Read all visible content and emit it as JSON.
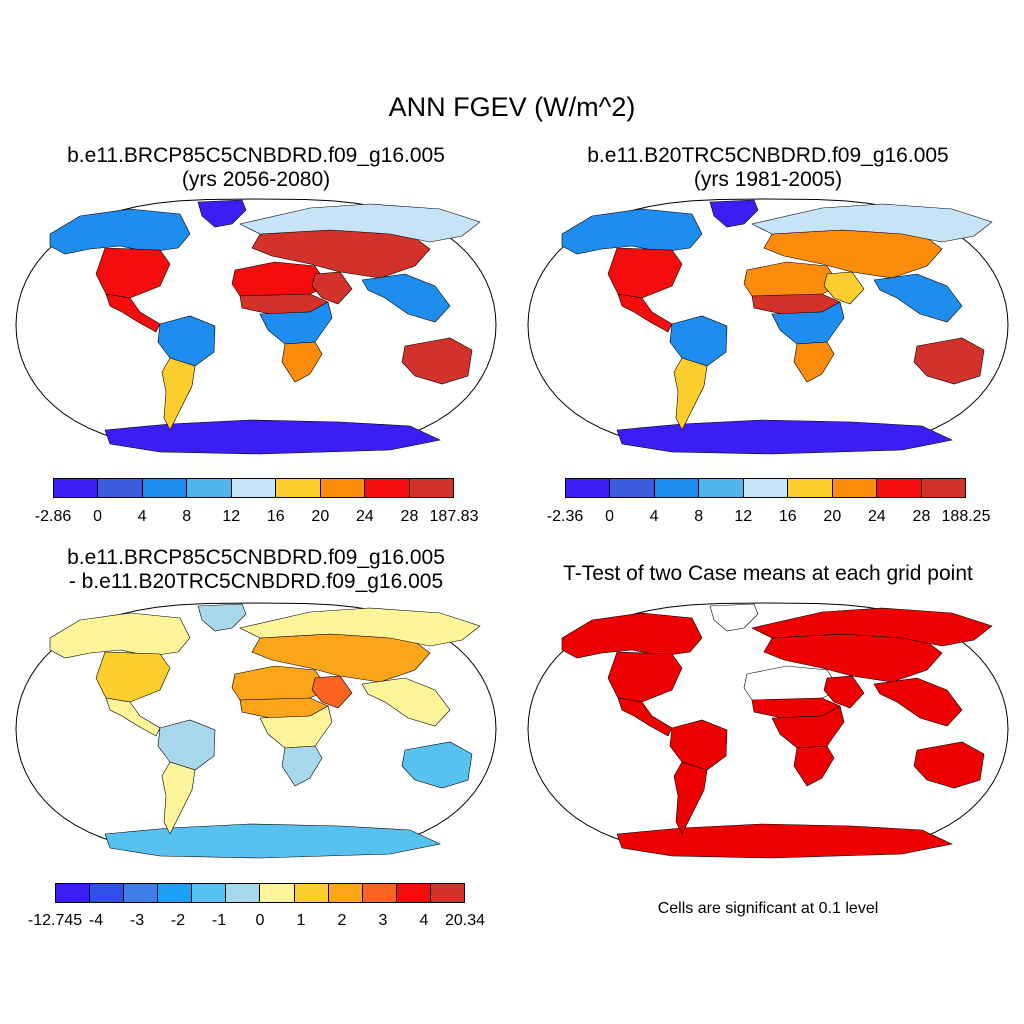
{
  "title": "ANN FGEV (W/m^2)",
  "colors": {
    "abs_scale": [
      "#3b1ef5",
      "#3e5ce0",
      "#1e8df0",
      "#4fb4ec",
      "#c6e3f7",
      "#fccf2e",
      "#fc8c0b",
      "#f50d0d",
      "#d2322a"
    ],
    "diff_scale": [
      "#3b1ef5",
      "#2f4fe8",
      "#3f7de8",
      "#1aa0f5",
      "#57c1ef",
      "#a8d8ec",
      "#fef59a",
      "#fccf2e",
      "#fca51a",
      "#fb6420",
      "#f50d0d",
      "#d2322a"
    ],
    "ttest": "#ee0000",
    "ocean": "#ffffff",
    "outline": "#000000"
  },
  "panels": [
    {
      "id": "future",
      "title_line1": "b.e11.BRCP85C5CNBDRD.f09_g16.005",
      "title_line2": "(yrs 2056-2080)",
      "colorbar_labels": [
        "-2.86",
        "0",
        "4",
        "8",
        "12",
        "16",
        "20",
        "24",
        "28",
        "187.83"
      ]
    },
    {
      "id": "historical",
      "title_line1": "b.e11.B20TRC5CNBDRD.f09_g16.005",
      "title_line2": "(yrs 1981-2005)",
      "colorbar_labels": [
        "-2.36",
        "0",
        "4",
        "8",
        "12",
        "16",
        "20",
        "24",
        "28",
        "188.25"
      ]
    },
    {
      "id": "difference",
      "title_line1": "b.e11.BRCP85C5CNBDRD.f09_g16.005",
      "title_line2": "- b.e11.B20TRC5CNBDRD.f09_g16.005",
      "colorbar_labels": [
        "-12.745",
        "-4",
        "-3",
        "-2",
        "-1",
        "0",
        "1",
        "2",
        "3",
        "4",
        "20.34"
      ]
    },
    {
      "id": "ttest",
      "title_line1": "T-Test of two Case means at each grid point",
      "note": "Cells are significant at 0.1 level"
    }
  ],
  "chart_data": [
    {
      "type": "heatmap",
      "title": "ANN FGEV (W/m^2) — b.e11.BRCP85C5CNBDRD.f09_g16.005 (yrs 2056-2080)",
      "projection": "Robinson global map",
      "colorbar": {
        "boundaries": [
          -2.86,
          0,
          4,
          8,
          12,
          16,
          20,
          24,
          28,
          187.83
        ]
      },
      "regions": [
        {
          "name": "Antarctica",
          "value": -1
        },
        {
          "name": "Greenland",
          "value": -1
        },
        {
          "name": "Boreal North America",
          "value": 6
        },
        {
          "name": "Eastern US",
          "value": 26
        },
        {
          "name": "Mexico",
          "value": 24
        },
        {
          "name": "Amazon",
          "value": 5
        },
        {
          "name": "Southern South America",
          "value": 18
        },
        {
          "name": "Sahara",
          "value": 26
        },
        {
          "name": "Sahel",
          "value": 29
        },
        {
          "name": "Central Africa",
          "value": 6
        },
        {
          "name": "Southern Africa",
          "value": 20
        },
        {
          "name": "Arabia",
          "value": 30
        },
        {
          "name": "Central Asia",
          "value": 30
        },
        {
          "name": "Siberia",
          "value": 14
        },
        {
          "name": "Southeast Asia",
          "value": 6
        },
        {
          "name": "Australia",
          "value": 30
        }
      ]
    },
    {
      "type": "heatmap",
      "title": "ANN FGEV (W/m^2) — b.e11.B20TRC5CNBDRD.f09_g16.005 (yrs 1981-2005)",
      "projection": "Robinson global map",
      "colorbar": {
        "boundaries": [
          -2.36,
          0,
          4,
          8,
          12,
          16,
          20,
          24,
          28,
          188.25
        ]
      },
      "regions": [
        {
          "name": "Antarctica",
          "value": -1
        },
        {
          "name": "Greenland",
          "value": -1
        },
        {
          "name": "Boreal North America",
          "value": 5
        },
        {
          "name": "Eastern US",
          "value": 25
        },
        {
          "name": "Mexico",
          "value": 24
        },
        {
          "name": "Amazon",
          "value": 5
        },
        {
          "name": "Southern South America",
          "value": 18
        },
        {
          "name": "Sahara",
          "value": 20
        },
        {
          "name": "Sahel",
          "value": 28
        },
        {
          "name": "Central Africa",
          "value": 6
        },
        {
          "name": "Southern Africa",
          "value": 22
        },
        {
          "name": "Arabia",
          "value": 18
        },
        {
          "name": "Central Asia",
          "value": 22
        },
        {
          "name": "Siberia",
          "value": 12
        },
        {
          "name": "Southeast Asia",
          "value": 6
        },
        {
          "name": "Australia",
          "value": 30
        }
      ]
    },
    {
      "type": "heatmap",
      "title": "Difference: b.e11.BRCP85C5CNBDRD.f09_g16.005 - b.e11.B20TRC5CNBDRD.f09_g16.005",
      "projection": "Robinson global map",
      "colorbar": {
        "boundaries": [
          -12.745,
          -4,
          -3,
          -2,
          -1,
          0,
          1,
          2,
          3,
          4,
          20.34
        ]
      },
      "regions": [
        {
          "name": "Antarctica",
          "value": -0.5
        },
        {
          "name": "Greenland",
          "value": 0.5
        },
        {
          "name": "Boreal North America",
          "value": 1.5
        },
        {
          "name": "Eastern US",
          "value": 2.5
        },
        {
          "name": "Mexico",
          "value": 1.5
        },
        {
          "name": "Amazon",
          "value": 0.5
        },
        {
          "name": "Southern South America",
          "value": 1.5
        },
        {
          "name": "Sahara",
          "value": 3.5
        },
        {
          "name": "Sahel",
          "value": 3.5
        },
        {
          "name": "Central Africa",
          "value": 1.5
        },
        {
          "name": "Southern Africa",
          "value": 0.5
        },
        {
          "name": "Arabia",
          "value": 6
        },
        {
          "name": "Central Asia",
          "value": 3.5
        },
        {
          "name": "Siberia",
          "value": 1.5
        },
        {
          "name": "Southeast Asia",
          "value": 1.5
        },
        {
          "name": "Australia",
          "value": -0.5
        }
      ]
    },
    {
      "type": "heatmap",
      "title": "T-Test of two Case means at each grid point",
      "note": "Cells are significant at 0.1 level",
      "legend": {
        "significant": "red",
        "not significant": "white"
      },
      "regions": [
        {
          "name": "Antarctica",
          "significant": true
        },
        {
          "name": "Greenland",
          "significant": false
        },
        {
          "name": "Boreal North America",
          "significant": true
        },
        {
          "name": "Eastern US",
          "significant": true
        },
        {
          "name": "Mexico",
          "significant": true
        },
        {
          "name": "Amazon",
          "significant": true
        },
        {
          "name": "Southern South America",
          "significant": true
        },
        {
          "name": "Sahara",
          "significant": false
        },
        {
          "name": "Sahel",
          "significant": true
        },
        {
          "name": "Central Africa",
          "significant": true
        },
        {
          "name": "Southern Africa",
          "significant": true
        },
        {
          "name": "Arabia",
          "significant": true
        },
        {
          "name": "Central Asia",
          "significant": true
        },
        {
          "name": "Siberia",
          "significant": true
        },
        {
          "name": "Southeast Asia",
          "significant": true
        },
        {
          "name": "Australia",
          "significant": true
        }
      ]
    }
  ]
}
